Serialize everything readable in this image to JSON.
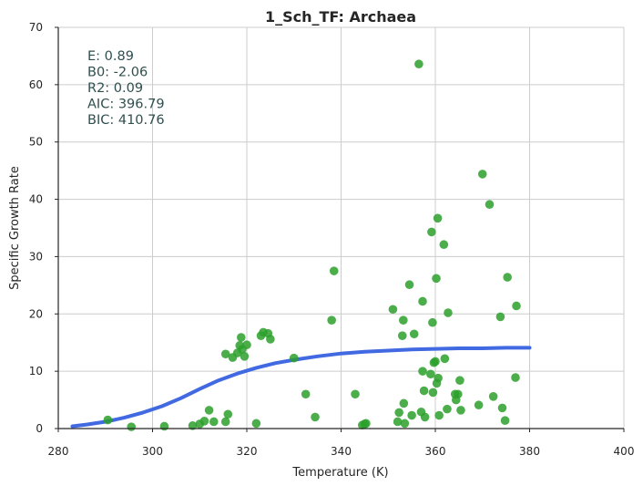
{
  "chart_data": {
    "type": "scatter",
    "title": "1_Sch_TF: Archaea",
    "xlabel": "Temperature (K)",
    "ylabel": "Specific Growth Rate",
    "xlim": [
      280,
      400
    ],
    "ylim": [
      0,
      70
    ],
    "xticks": [
      280,
      300,
      320,
      340,
      360,
      380,
      400
    ],
    "yticks": [
      0,
      10,
      20,
      30,
      40,
      50,
      60,
      70
    ],
    "grid": true,
    "colors": {
      "points": "#2ca02c",
      "fit": "#4169e1",
      "annotation": "#2f4f4f",
      "grid": "#cccccc"
    },
    "annotation_lines": [
      "E:  0.89",
      "B0:  -2.06",
      "R2:  0.09",
      "AIC: 396.79",
      "BIC: 410.76"
    ],
    "fit_curve": {
      "x": [
        283,
        286,
        290,
        294,
        298,
        302,
        306,
        310,
        314,
        318,
        322,
        326,
        330,
        335,
        340,
        345,
        350,
        355,
        360,
        365,
        370,
        375,
        380
      ],
      "y": [
        0.4,
        0.7,
        1.2,
        1.9,
        2.8,
        3.9,
        5.3,
        6.9,
        8.4,
        9.6,
        10.6,
        11.4,
        12.0,
        12.6,
        13.1,
        13.4,
        13.6,
        13.8,
        13.9,
        14.0,
        14.0,
        14.1,
        14.1
      ]
    },
    "points": [
      {
        "x": 290.5,
        "y": 1.5
      },
      {
        "x": 295.5,
        "y": 0.3
      },
      {
        "x": 302.5,
        "y": 0.4
      },
      {
        "x": 308.5,
        "y": 0.5
      },
      {
        "x": 310.0,
        "y": 0.8
      },
      {
        "x": 311.0,
        "y": 1.3
      },
      {
        "x": 312.0,
        "y": 3.2
      },
      {
        "x": 313.0,
        "y": 1.2
      },
      {
        "x": 315.5,
        "y": 1.2
      },
      {
        "x": 316.0,
        "y": 2.5
      },
      {
        "x": 315.5,
        "y": 13.0
      },
      {
        "x": 317.0,
        "y": 12.4
      },
      {
        "x": 318.0,
        "y": 13.2
      },
      {
        "x": 318.5,
        "y": 14.5
      },
      {
        "x": 318.8,
        "y": 15.9
      },
      {
        "x": 319.0,
        "y": 13.8
      },
      {
        "x": 319.5,
        "y": 12.6
      },
      {
        "x": 320.0,
        "y": 14.6
      },
      {
        "x": 322.0,
        "y": 0.9
      },
      {
        "x": 323.0,
        "y": 16.2
      },
      {
        "x": 323.5,
        "y": 16.8
      },
      {
        "x": 324.5,
        "y": 16.6
      },
      {
        "x": 325.0,
        "y": 15.6
      },
      {
        "x": 330.0,
        "y": 12.3
      },
      {
        "x": 332.5,
        "y": 6.0
      },
      {
        "x": 334.5,
        "y": 2.0
      },
      {
        "x": 338.0,
        "y": 18.9
      },
      {
        "x": 338.5,
        "y": 27.5
      },
      {
        "x": 343.0,
        "y": 6.0
      },
      {
        "x": 344.5,
        "y": 0.6
      },
      {
        "x": 345.0,
        "y": 0.8
      },
      {
        "x": 345.3,
        "y": 0.9
      },
      {
        "x": 351.0,
        "y": 20.8
      },
      {
        "x": 352.0,
        "y": 1.2
      },
      {
        "x": 352.3,
        "y": 2.8
      },
      {
        "x": 353.0,
        "y": 16.2
      },
      {
        "x": 353.2,
        "y": 18.9
      },
      {
        "x": 353.3,
        "y": 4.4
      },
      {
        "x": 353.5,
        "y": 0.9
      },
      {
        "x": 354.5,
        "y": 25.1
      },
      {
        "x": 355.0,
        "y": 2.3
      },
      {
        "x": 355.5,
        "y": 16.5
      },
      {
        "x": 356.5,
        "y": 63.6
      },
      {
        "x": 357.0,
        "y": 2.9
      },
      {
        "x": 357.3,
        "y": 22.2
      },
      {
        "x": 357.3,
        "y": 10.0
      },
      {
        "x": 357.6,
        "y": 6.6
      },
      {
        "x": 357.8,
        "y": 2.0
      },
      {
        "x": 359.0,
        "y": 9.5
      },
      {
        "x": 359.2,
        "y": 34.3
      },
      {
        "x": 359.4,
        "y": 18.5
      },
      {
        "x": 359.5,
        "y": 6.3
      },
      {
        "x": 359.7,
        "y": 11.5
      },
      {
        "x": 360.0,
        "y": 11.7
      },
      {
        "x": 360.2,
        "y": 26.2
      },
      {
        "x": 360.3,
        "y": 7.9
      },
      {
        "x": 360.5,
        "y": 36.7
      },
      {
        "x": 360.6,
        "y": 8.8
      },
      {
        "x": 360.8,
        "y": 2.3
      },
      {
        "x": 361.8,
        "y": 32.1
      },
      {
        "x": 362.0,
        "y": 12.2
      },
      {
        "x": 362.5,
        "y": 3.4
      },
      {
        "x": 362.7,
        "y": 20.2
      },
      {
        "x": 364.2,
        "y": 6.0
      },
      {
        "x": 364.4,
        "y": 5.0
      },
      {
        "x": 364.8,
        "y": 6.0
      },
      {
        "x": 365.2,
        "y": 8.4
      },
      {
        "x": 365.4,
        "y": 3.2
      },
      {
        "x": 369.2,
        "y": 4.1
      },
      {
        "x": 370.0,
        "y": 44.4
      },
      {
        "x": 371.5,
        "y": 39.1
      },
      {
        "x": 372.3,
        "y": 5.6
      },
      {
        "x": 373.8,
        "y": 19.5
      },
      {
        "x": 374.2,
        "y": 3.6
      },
      {
        "x": 374.8,
        "y": 1.4
      },
      {
        "x": 375.3,
        "y": 26.4
      },
      {
        "x": 377.0,
        "y": 8.9
      },
      {
        "x": 377.2,
        "y": 21.4
      }
    ]
  }
}
